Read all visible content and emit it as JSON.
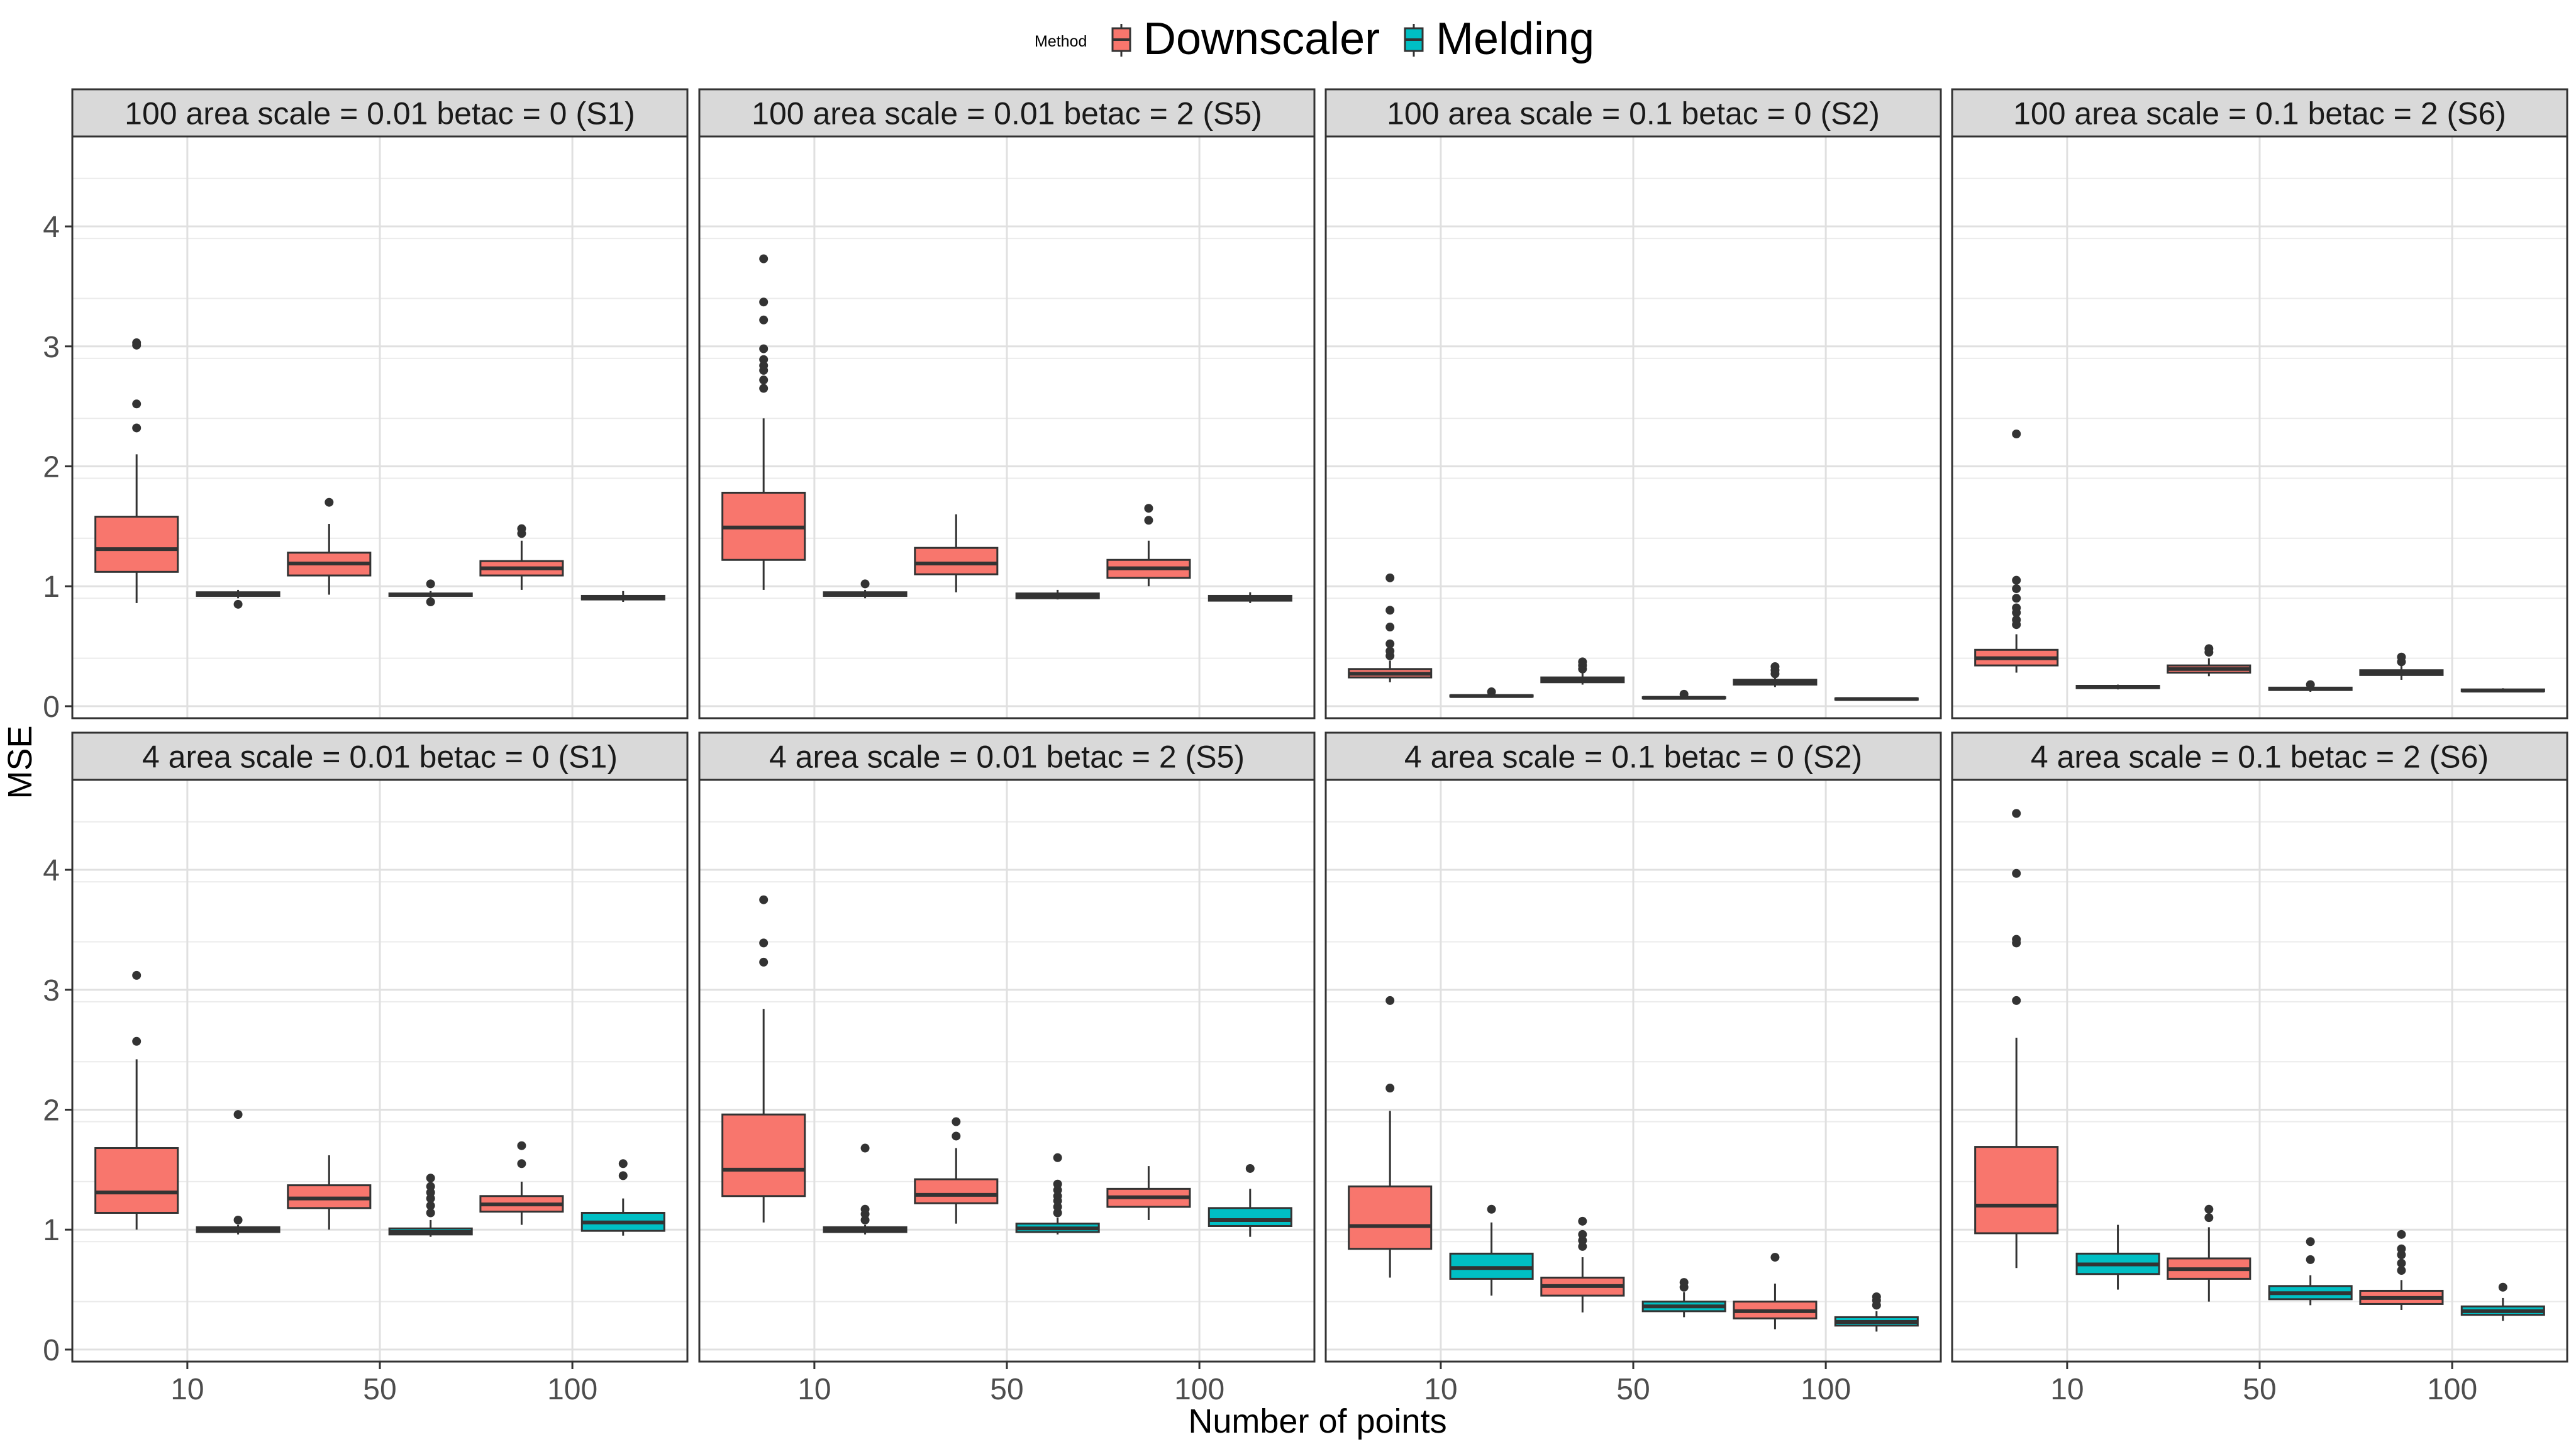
{
  "legend": {
    "title": "Method",
    "items": [
      {
        "label": "Downscaler",
        "color": "#F8766D"
      },
      {
        "label": "Melding",
        "color": "#00BFC4"
      }
    ]
  },
  "chart_data": {
    "type": "boxplot",
    "xlabel": "Number of points",
    "ylabel": "MSE",
    "x_categories": [
      "10",
      "50",
      "100"
    ],
    "ylim": [
      -0.1,
      4.75
    ],
    "y_ticks": [
      0,
      1,
      2,
      3,
      4
    ],
    "grid": true,
    "legend_position": "top",
    "series_names": [
      "Downscaler",
      "Melding"
    ],
    "panels": [
      {
        "title": "100 area scale = 0.01 betac = 0 (S1)",
        "groups": [
          {
            "x": "10",
            "series": "Downscaler",
            "min": 0.86,
            "q1": 1.12,
            "median": 1.31,
            "q3": 1.58,
            "max": 2.1,
            "outliers": [
              2.32,
              2.52,
              3.01,
              3.03
            ]
          },
          {
            "x": "10",
            "series": "Melding",
            "min": 0.9,
            "q1": 0.92,
            "median": 0.94,
            "q3": 0.95,
            "max": 0.97,
            "outliers": [
              0.85
            ]
          },
          {
            "x": "50",
            "series": "Downscaler",
            "min": 0.93,
            "q1": 1.09,
            "median": 1.19,
            "q3": 1.28,
            "max": 1.52,
            "outliers": [
              1.7
            ]
          },
          {
            "x": "50",
            "series": "Melding",
            "min": 0.9,
            "q1": 0.92,
            "median": 0.93,
            "q3": 0.94,
            "max": 0.96,
            "outliers": [
              0.87,
              1.02
            ]
          },
          {
            "x": "100",
            "series": "Downscaler",
            "min": 0.97,
            "q1": 1.09,
            "median": 1.15,
            "q3": 1.21,
            "max": 1.38,
            "outliers": [
              1.44,
              1.48
            ]
          },
          {
            "x": "100",
            "series": "Melding",
            "min": 0.87,
            "q1": 0.89,
            "median": 0.9,
            "q3": 0.92,
            "max": 0.96,
            "outliers": []
          }
        ]
      },
      {
        "title": "100 area scale = 0.01 betac = 2 (S5)",
        "groups": [
          {
            "x": "10",
            "series": "Downscaler",
            "min": 0.97,
            "q1": 1.22,
            "median": 1.49,
            "q3": 1.78,
            "max": 2.4,
            "outliers": [
              2.65,
              2.72,
              2.8,
              2.84,
              2.89,
              2.98,
              3.22,
              3.37,
              3.73
            ]
          },
          {
            "x": "10",
            "series": "Melding",
            "min": 0.9,
            "q1": 0.92,
            "median": 0.93,
            "q3": 0.95,
            "max": 0.97,
            "outliers": [
              1.02
            ]
          },
          {
            "x": "50",
            "series": "Downscaler",
            "min": 0.95,
            "q1": 1.1,
            "median": 1.19,
            "q3": 1.32,
            "max": 1.6,
            "outliers": []
          },
          {
            "x": "50",
            "series": "Melding",
            "min": 0.89,
            "q1": 0.9,
            "median": 0.92,
            "q3": 0.94,
            "max": 0.97,
            "outliers": []
          },
          {
            "x": "100",
            "series": "Downscaler",
            "min": 1.0,
            "q1": 1.07,
            "median": 1.15,
            "q3": 1.22,
            "max": 1.38,
            "outliers": [
              1.55,
              1.65
            ]
          },
          {
            "x": "100",
            "series": "Melding",
            "min": 0.86,
            "q1": 0.88,
            "median": 0.9,
            "q3": 0.92,
            "max": 0.95,
            "outliers": []
          }
        ]
      },
      {
        "title": "100 area scale = 0.1 betac = 0 (S2)",
        "groups": [
          {
            "x": "10",
            "series": "Downscaler",
            "min": 0.2,
            "q1": 0.24,
            "median": 0.27,
            "q3": 0.31,
            "max": 0.38,
            "outliers": [
              0.42,
              0.46,
              0.52,
              0.66,
              0.8,
              1.07
            ]
          },
          {
            "x": "10",
            "series": "Melding",
            "min": 0.07,
            "q1": 0.08,
            "median": 0.085,
            "q3": 0.09,
            "max": 0.1,
            "outliers": [
              0.12
            ]
          },
          {
            "x": "50",
            "series": "Downscaler",
            "min": 0.18,
            "q1": 0.2,
            "median": 0.22,
            "q3": 0.24,
            "max": 0.28,
            "outliers": [
              0.31,
              0.34,
              0.37
            ]
          },
          {
            "x": "50",
            "series": "Melding",
            "min": 0.06,
            "q1": 0.065,
            "median": 0.07,
            "q3": 0.075,
            "max": 0.085,
            "outliers": [
              0.1
            ]
          },
          {
            "x": "100",
            "series": "Downscaler",
            "min": 0.16,
            "q1": 0.18,
            "median": 0.2,
            "q3": 0.22,
            "max": 0.25,
            "outliers": [
              0.27,
              0.3,
              0.33
            ]
          },
          {
            "x": "100",
            "series": "Melding",
            "min": 0.05,
            "q1": 0.055,
            "median": 0.06,
            "q3": 0.065,
            "max": 0.07,
            "outliers": []
          }
        ]
      },
      {
        "title": "100 area scale = 0.1 betac = 2 (S6)",
        "groups": [
          {
            "x": "10",
            "series": "Downscaler",
            "min": 0.28,
            "q1": 0.34,
            "median": 0.4,
            "q3": 0.47,
            "max": 0.6,
            "outliers": [
              0.68,
              0.72,
              0.78,
              0.82,
              0.9,
              0.98,
              1.05,
              2.27
            ]
          },
          {
            "x": "10",
            "series": "Melding",
            "min": 0.14,
            "q1": 0.15,
            "median": 0.16,
            "q3": 0.17,
            "max": 0.18,
            "outliers": []
          },
          {
            "x": "50",
            "series": "Downscaler",
            "min": 0.25,
            "q1": 0.28,
            "median": 0.31,
            "q3": 0.34,
            "max": 0.4,
            "outliers": [
              0.45,
              0.48
            ]
          },
          {
            "x": "50",
            "series": "Melding",
            "min": 0.12,
            "q1": 0.135,
            "median": 0.145,
            "q3": 0.155,
            "max": 0.165,
            "outliers": [
              0.18
            ]
          },
          {
            "x": "100",
            "series": "Downscaler",
            "min": 0.22,
            "q1": 0.26,
            "median": 0.28,
            "q3": 0.3,
            "max": 0.34,
            "outliers": [
              0.37,
              0.41
            ]
          },
          {
            "x": "100",
            "series": "Melding",
            "min": 0.12,
            "q1": 0.125,
            "median": 0.13,
            "q3": 0.14,
            "max": 0.15,
            "outliers": []
          }
        ]
      },
      {
        "title": "4 area scale = 0.01 betac = 0 (S1)",
        "groups": [
          {
            "x": "10",
            "series": "Downscaler",
            "min": 1.0,
            "q1": 1.14,
            "median": 1.31,
            "q3": 1.68,
            "max": 2.42,
            "outliers": [
              2.57,
              3.12
            ]
          },
          {
            "x": "10",
            "series": "Melding",
            "min": 0.96,
            "q1": 0.98,
            "median": 1.0,
            "q3": 1.02,
            "max": 1.04,
            "outliers": [
              1.08,
              1.96
            ]
          },
          {
            "x": "50",
            "series": "Downscaler",
            "min": 1.0,
            "q1": 1.18,
            "median": 1.26,
            "q3": 1.37,
            "max": 1.62,
            "outliers": []
          },
          {
            "x": "50",
            "series": "Melding",
            "min": 0.94,
            "q1": 0.96,
            "median": 0.98,
            "q3": 1.01,
            "max": 1.08,
            "outliers": [
              1.14,
              1.2,
              1.26,
              1.31,
              1.36,
              1.43
            ]
          },
          {
            "x": "100",
            "series": "Downscaler",
            "min": 1.04,
            "q1": 1.15,
            "median": 1.21,
            "q3": 1.28,
            "max": 1.4,
            "outliers": [
              1.55,
              1.7
            ]
          },
          {
            "x": "100",
            "series": "Melding",
            "min": 0.95,
            "q1": 0.99,
            "median": 1.06,
            "q3": 1.14,
            "max": 1.26,
            "outliers": [
              1.45,
              1.55
            ]
          }
        ]
      },
      {
        "title": "4 area scale = 0.01 betac = 2 (S5)",
        "groups": [
          {
            "x": "10",
            "series": "Downscaler",
            "min": 1.06,
            "q1": 1.28,
            "median": 1.5,
            "q3": 1.96,
            "max": 2.84,
            "outliers": [
              3.23,
              3.39,
              3.75
            ]
          },
          {
            "x": "10",
            "series": "Melding",
            "min": 0.96,
            "q1": 0.98,
            "median": 1.0,
            "q3": 1.02,
            "max": 1.04,
            "outliers": [
              1.08,
              1.13,
              1.17,
              1.68
            ]
          },
          {
            "x": "50",
            "series": "Downscaler",
            "min": 1.05,
            "q1": 1.22,
            "median": 1.29,
            "q3": 1.42,
            "max": 1.68,
            "outliers": [
              1.78,
              1.9
            ]
          },
          {
            "x": "50",
            "series": "Melding",
            "min": 0.96,
            "q1": 0.98,
            "median": 1.01,
            "q3": 1.05,
            "max": 1.1,
            "outliers": [
              1.14,
              1.19,
              1.24,
              1.28,
              1.33,
              1.38,
              1.6
            ]
          },
          {
            "x": "100",
            "series": "Downscaler",
            "min": 1.08,
            "q1": 1.19,
            "median": 1.27,
            "q3": 1.34,
            "max": 1.53,
            "outliers": []
          },
          {
            "x": "100",
            "series": "Melding",
            "min": 0.94,
            "q1": 1.03,
            "median": 1.08,
            "q3": 1.18,
            "max": 1.34,
            "outliers": [
              1.51
            ]
          }
        ]
      },
      {
        "title": "4 area scale = 0.1 betac = 0 (S2)",
        "groups": [
          {
            "x": "10",
            "series": "Downscaler",
            "min": 0.6,
            "q1": 0.84,
            "median": 1.03,
            "q3": 1.36,
            "max": 1.99,
            "outliers": [
              2.18,
              2.91
            ]
          },
          {
            "x": "10",
            "series": "Melding",
            "min": 0.45,
            "q1": 0.59,
            "median": 0.68,
            "q3": 0.8,
            "max": 1.06,
            "outliers": [
              1.17
            ]
          },
          {
            "x": "50",
            "series": "Downscaler",
            "min": 0.31,
            "q1": 0.45,
            "median": 0.53,
            "q3": 0.6,
            "max": 0.77,
            "outliers": [
              0.86,
              0.91,
              0.96,
              1.07
            ]
          },
          {
            "x": "50",
            "series": "Melding",
            "min": 0.27,
            "q1": 0.32,
            "median": 0.36,
            "q3": 0.4,
            "max": 0.48,
            "outliers": [
              0.52,
              0.56
            ]
          },
          {
            "x": "100",
            "series": "Downscaler",
            "min": 0.17,
            "q1": 0.26,
            "median": 0.32,
            "q3": 0.4,
            "max": 0.55,
            "outliers": [
              0.77
            ]
          },
          {
            "x": "100",
            "series": "Melding",
            "min": 0.15,
            "q1": 0.2,
            "median": 0.23,
            "q3": 0.27,
            "max": 0.32,
            "outliers": [
              0.37,
              0.41,
              0.44
            ]
          }
        ]
      },
      {
        "title": "4 area scale = 0.1 betac = 2 (S6)",
        "groups": [
          {
            "x": "10",
            "series": "Downscaler",
            "min": 0.68,
            "q1": 0.97,
            "median": 1.2,
            "q3": 1.69,
            "max": 2.6,
            "outliers": [
              2.91,
              3.39,
              3.42,
              3.97,
              4.47
            ]
          },
          {
            "x": "10",
            "series": "Melding",
            "min": 0.5,
            "q1": 0.63,
            "median": 0.71,
            "q3": 0.8,
            "max": 1.04,
            "outliers": []
          },
          {
            "x": "50",
            "series": "Downscaler",
            "min": 0.4,
            "q1": 0.59,
            "median": 0.67,
            "q3": 0.76,
            "max": 1.02,
            "outliers": [
              1.1,
              1.17
            ]
          },
          {
            "x": "50",
            "series": "Melding",
            "min": 0.37,
            "q1": 0.42,
            "median": 0.47,
            "q3": 0.53,
            "max": 0.62,
            "outliers": [
              0.75,
              0.9
            ]
          },
          {
            "x": "100",
            "series": "Downscaler",
            "min": 0.33,
            "q1": 0.38,
            "median": 0.43,
            "q3": 0.49,
            "max": 0.58,
            "outliers": [
              0.66,
              0.72,
              0.79,
              0.84,
              0.96
            ]
          },
          {
            "x": "100",
            "series": "Melding",
            "min": 0.24,
            "q1": 0.29,
            "median": 0.32,
            "q3": 0.36,
            "max": 0.43,
            "outliers": [
              0.52
            ]
          }
        ]
      }
    ]
  }
}
